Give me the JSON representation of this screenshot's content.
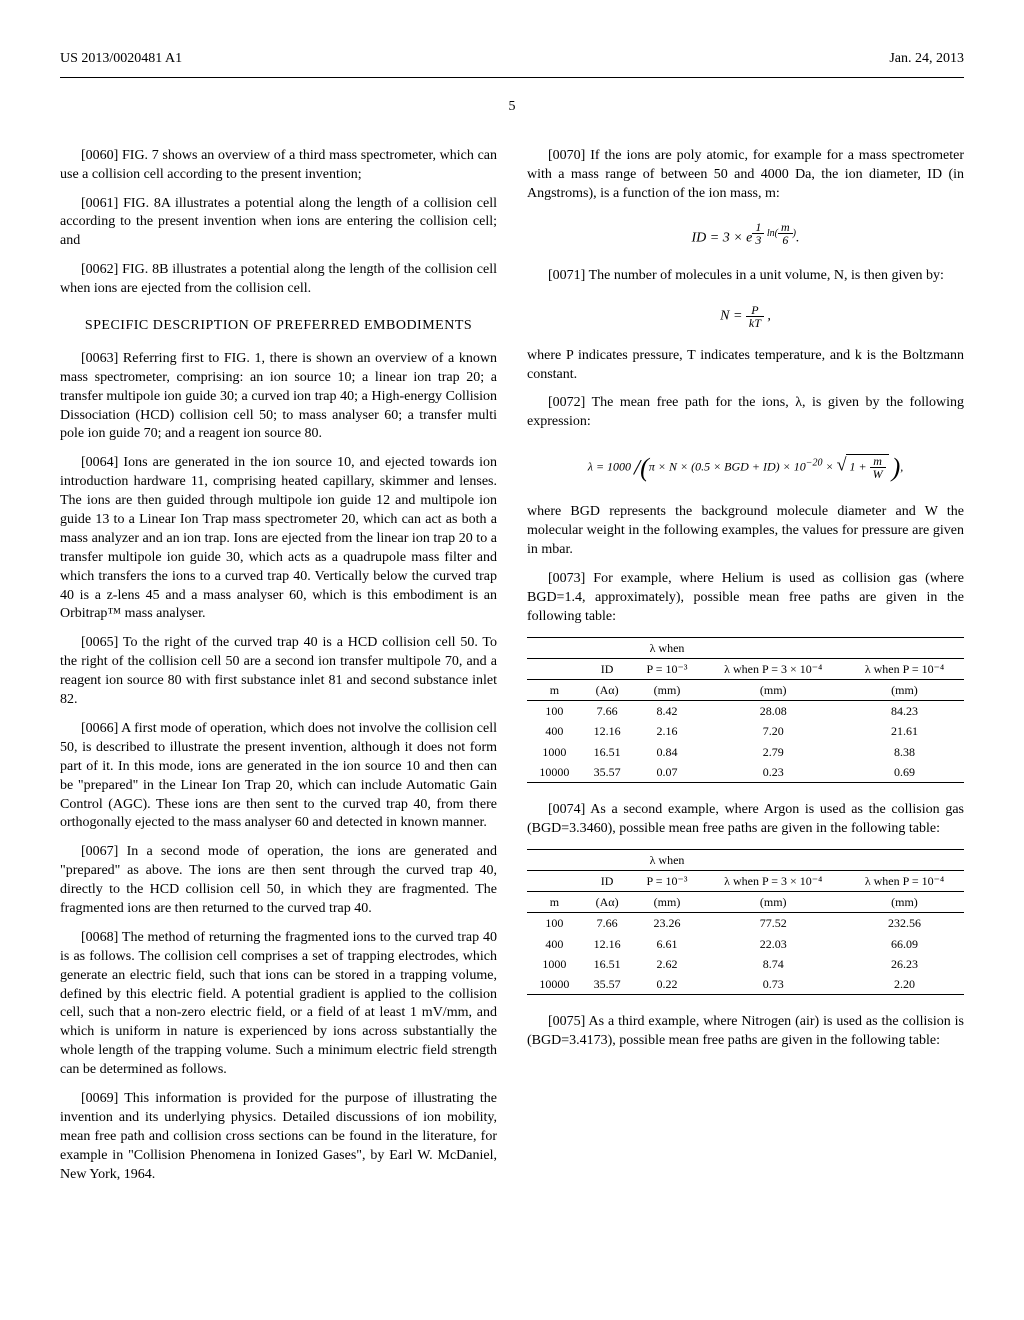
{
  "header": {
    "left": "US 2013/0020481 A1",
    "right": "Jan. 24, 2013",
    "page": "5"
  },
  "left_col": {
    "p0060": "[0060]   FIG. 7 shows an overview of a third mass spectrometer, which can use a collision cell according to the present invention;",
    "p0061": "[0061]   FIG. 8A illustrates a potential along the length of a collision cell according to the present invention when ions are entering the collision cell; and",
    "p0062": "[0062]   FIG. 8B illustrates a potential along the length of the collision cell when ions are ejected from the collision cell.",
    "heading": "SPECIFIC DESCRIPTION OF PREFERRED EMBODIMENTS",
    "p0063": "[0063]   Referring first to FIG. 1, there is shown an overview of a known mass spectrometer, comprising: an ion source 10; a linear ion trap 20; a transfer multipole ion guide 30; a curved ion trap 40; a High-energy Collision Dissociation (HCD) collision cell 50; to mass analyser 60; a transfer multi pole ion guide 70; and a reagent ion source 80.",
    "p0064": "[0064]   Ions are generated in the ion source 10, and ejected towards ion introduction hardware 11, comprising heated capillary, skimmer and lenses. The ions are then guided through multipole ion guide 12 and multipole ion guide 13 to a Linear Ion Trap mass spectrometer 20, which can act as both a mass analyzer and an ion trap. Ions are ejected from the linear ion trap 20 to a transfer multipole ion guide 30, which acts as a quadrupole mass filter and which transfers the ions to a curved trap 40. Vertically below the curved trap 40 is a z-lens 45 and a mass analyser 60, which is this embodiment is an Orbitrap™ mass analyser.",
    "p0065": "[0065]   To the right of the curved trap 40 is a HCD collision cell 50. To the right of the collision cell 50 are a second ion transfer multipole 70, and a reagent ion source 80 with first substance inlet 81 and second substance inlet 82.",
    "p0066": "[0066]   A first mode of operation, which does not involve the collision cell 50, is described to illustrate the present invention, although it does not form part of it. In this mode, ions are generated in the ion source 10 and then can be \"prepared\" in the Linear Ion Trap 20, which can include Automatic Gain Control (AGC). These ions are then sent to the curved trap 40, from there orthogonally ejected to the mass analyser 60 and detected in known manner.",
    "p0067": "[0067]   In a second mode of operation, the ions are generated and \"prepared\" as above. The ions are then sent through the curved trap 40, directly to the HCD collision cell 50, in which they are fragmented. The fragmented ions are then returned to the curved trap 40.",
    "p0068": "[0068]   The method of returning the fragmented ions to the curved trap 40 is as follows. The collision cell comprises a set of trapping electrodes, which generate an electric field, such that ions can be stored in a trapping volume, defined by this electric field. A potential gradient is applied to the collision cell, such that a non-zero electric field, or a field of at least 1 mV/mm, and which is uniform in nature is experienced by ions across substantially the whole length of the trapping volume. Such a minimum electric field strength can be determined as follows.",
    "p0069": "[0069]   This information is provided for the purpose of illustrating the invention and its underlying physics. Detailed discussions of ion mobility, mean free path and collision cross sections can be found in the literature, for example in \"Collision Phenomena in Ionized Gases\", by Earl W. McDaniel, New York, 1964."
  },
  "right_col": {
    "p0070": "[0070]   If the ions are poly atomic, for example for a mass spectrometer with a mass range of between 50 and 4000 Da, the ion diameter, ID (in Angstroms), is a function of the ion mass, m:",
    "p0071": "[0071]   The number of molecules in a unit volume, N, is then given by:",
    "p0071_after": "where P indicates pressure, T indicates temperature, and k is the Boltzmann constant.",
    "p0072": "[0072]   The mean free path for the ions, λ, is given by the following expression:",
    "p0072_after": "where BGD represents the background molecule diameter and W the molecular weight in the following examples, the values for pressure are given in mbar.",
    "p0073": "[0073]   For example, where Helium is used as collision gas (where BGD=1.4, approximately), possible mean free paths are given in the following table:",
    "p0074": "[0074]   As a second example, where Argon is used as the collision gas (BGD=3.3460), possible mean free paths are given in the following table:",
    "p0075": "[0075]   As a third example, where Nitrogen (air) is used as the collision is (BGD=3.4173), possible mean free paths are given in the following table:"
  },
  "table_headers": {
    "m": "m",
    "id": "ID",
    "id_unit": "(Aα)",
    "lambda_p3": "λ when",
    "lambda_p3_b": "P = 10⁻³",
    "lambda_p3_c": "(mm)",
    "lambda_3e4": "λ when P = 3 × 10⁻⁴",
    "lambda_3e4_b": "(mm)",
    "lambda_e4": "λ when P = 10⁻⁴",
    "lambda_e4_b": "(mm)"
  },
  "table1": {
    "rows": [
      {
        "m": "100",
        "id": "7.66",
        "c3": "8.42",
        "c4": "28.08",
        "c5": "84.23"
      },
      {
        "m": "400",
        "id": "12.16",
        "c3": "2.16",
        "c4": "7.20",
        "c5": "21.61"
      },
      {
        "m": "1000",
        "id": "16.51",
        "c3": "0.84",
        "c4": "2.79",
        "c5": "8.38"
      },
      {
        "m": "10000",
        "id": "35.57",
        "c3": "0.07",
        "c4": "0.23",
        "c5": "0.69"
      }
    ]
  },
  "table2": {
    "rows": [
      {
        "m": "100",
        "id": "7.66",
        "c3": "23.26",
        "c4": "77.52",
        "c5": "232.56"
      },
      {
        "m": "400",
        "id": "12.16",
        "c3": "6.61",
        "c4": "22.03",
        "c5": "66.09"
      },
      {
        "m": "1000",
        "id": "16.51",
        "c3": "2.62",
        "c4": "8.74",
        "c5": "26.23"
      },
      {
        "m": "10000",
        "id": "35.57",
        "c3": "0.22",
        "c4": "0.73",
        "c5": "2.20"
      }
    ]
  }
}
